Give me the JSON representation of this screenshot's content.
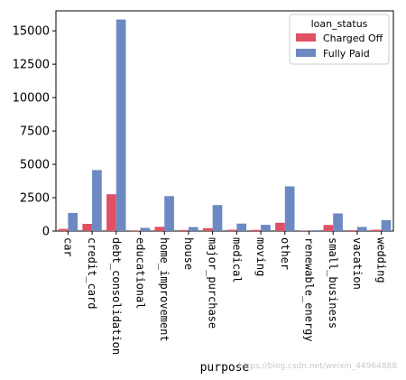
{
  "chart_data": {
    "type": "bar",
    "title": "",
    "xlabel": "purpose",
    "ylabel": "",
    "ylim": [
      0,
      16500
    ],
    "yticks": [
      0,
      2500,
      5000,
      7500,
      10000,
      12500,
      15000
    ],
    "categories": [
      "car",
      "credit_card",
      "debt_consolidation",
      "educational",
      "home_improvement",
      "house",
      "major_purchase",
      "medical",
      "moving",
      "other",
      "renewable_energy",
      "small_business",
      "vacation",
      "wedding"
    ],
    "legend": {
      "title": "loan_status",
      "position": "top-right"
    },
    "series": [
      {
        "name": "Charged Off",
        "color": "#e05064",
        "values": [
          160,
          540,
          2760,
          50,
          320,
          80,
          220,
          100,
          90,
          620,
          20,
          460,
          60,
          100
        ]
      },
      {
        "name": "Fully Paid",
        "color": "#6c89c2",
        "values": [
          1360,
          4570,
          15850,
          240,
          2620,
          300,
          1950,
          560,
          470,
          3350,
          60,
          1320,
          310,
          820
        ]
      }
    ],
    "grid": false
  },
  "watermark": "https://blog.csdn.net/weixin_44964888"
}
